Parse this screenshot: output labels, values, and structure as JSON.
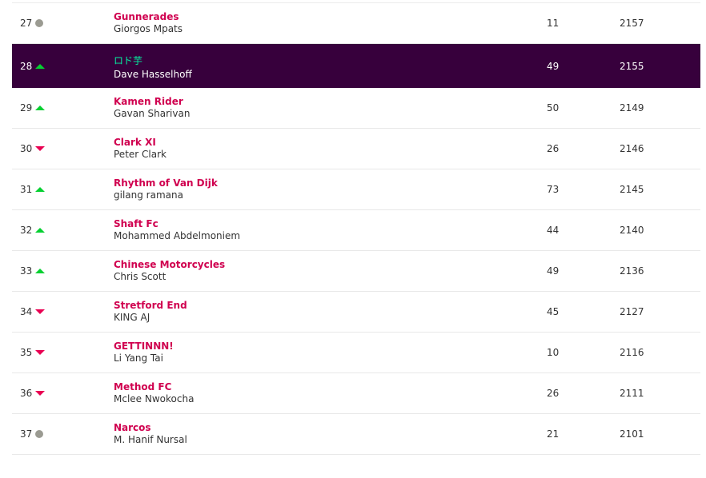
{
  "colors": {
    "highlight_bg": "#37003c",
    "team_name": "#d0004f",
    "highlight_team": "#05f0a0",
    "up": "#05d031",
    "down": "#e90052",
    "same": "#9b9b92"
  },
  "rows": [
    {
      "rank": "27",
      "movement": "same",
      "team": "Gunnerades",
      "manager": "Giorgos Mpats",
      "gw": "11",
      "total": "2157"
    },
    {
      "rank": "28",
      "movement": "up",
      "team": "ロド芋",
      "manager": "Dave Hasselhoff",
      "gw": "49",
      "total": "2155",
      "highlighted": true
    },
    {
      "rank": "29",
      "movement": "up",
      "team": "Kamen Rider",
      "manager": "Gavan Sharivan",
      "gw": "50",
      "total": "2149"
    },
    {
      "rank": "30",
      "movement": "down",
      "team": "Clark XI",
      "manager": "Peter Clark",
      "gw": "26",
      "total": "2146"
    },
    {
      "rank": "31",
      "movement": "up",
      "team": "Rhythm of Van Dijk",
      "manager": "gilang ramana",
      "gw": "73",
      "total": "2145"
    },
    {
      "rank": "32",
      "movement": "up",
      "team": "Shaft Fc",
      "manager": "Mohammed Abdelmoniem",
      "gw": "44",
      "total": "2140"
    },
    {
      "rank": "33",
      "movement": "up",
      "team": "Chinese Motorcycles",
      "manager": "Chris Scott",
      "gw": "49",
      "total": "2136"
    },
    {
      "rank": "34",
      "movement": "down",
      "team": "Stretford End",
      "manager": "KING AJ",
      "gw": "45",
      "total": "2127"
    },
    {
      "rank": "35",
      "movement": "down",
      "team": "GETTINNN!",
      "manager": "Li Yang Tai",
      "gw": "10",
      "total": "2116"
    },
    {
      "rank": "36",
      "movement": "down",
      "team": "Method FC",
      "manager": "Mclee Nwokocha",
      "gw": "26",
      "total": "2111"
    },
    {
      "rank": "37",
      "movement": "same",
      "team": "Narcos",
      "manager": "M. Hanif Nursal",
      "gw": "21",
      "total": "2101"
    }
  ]
}
